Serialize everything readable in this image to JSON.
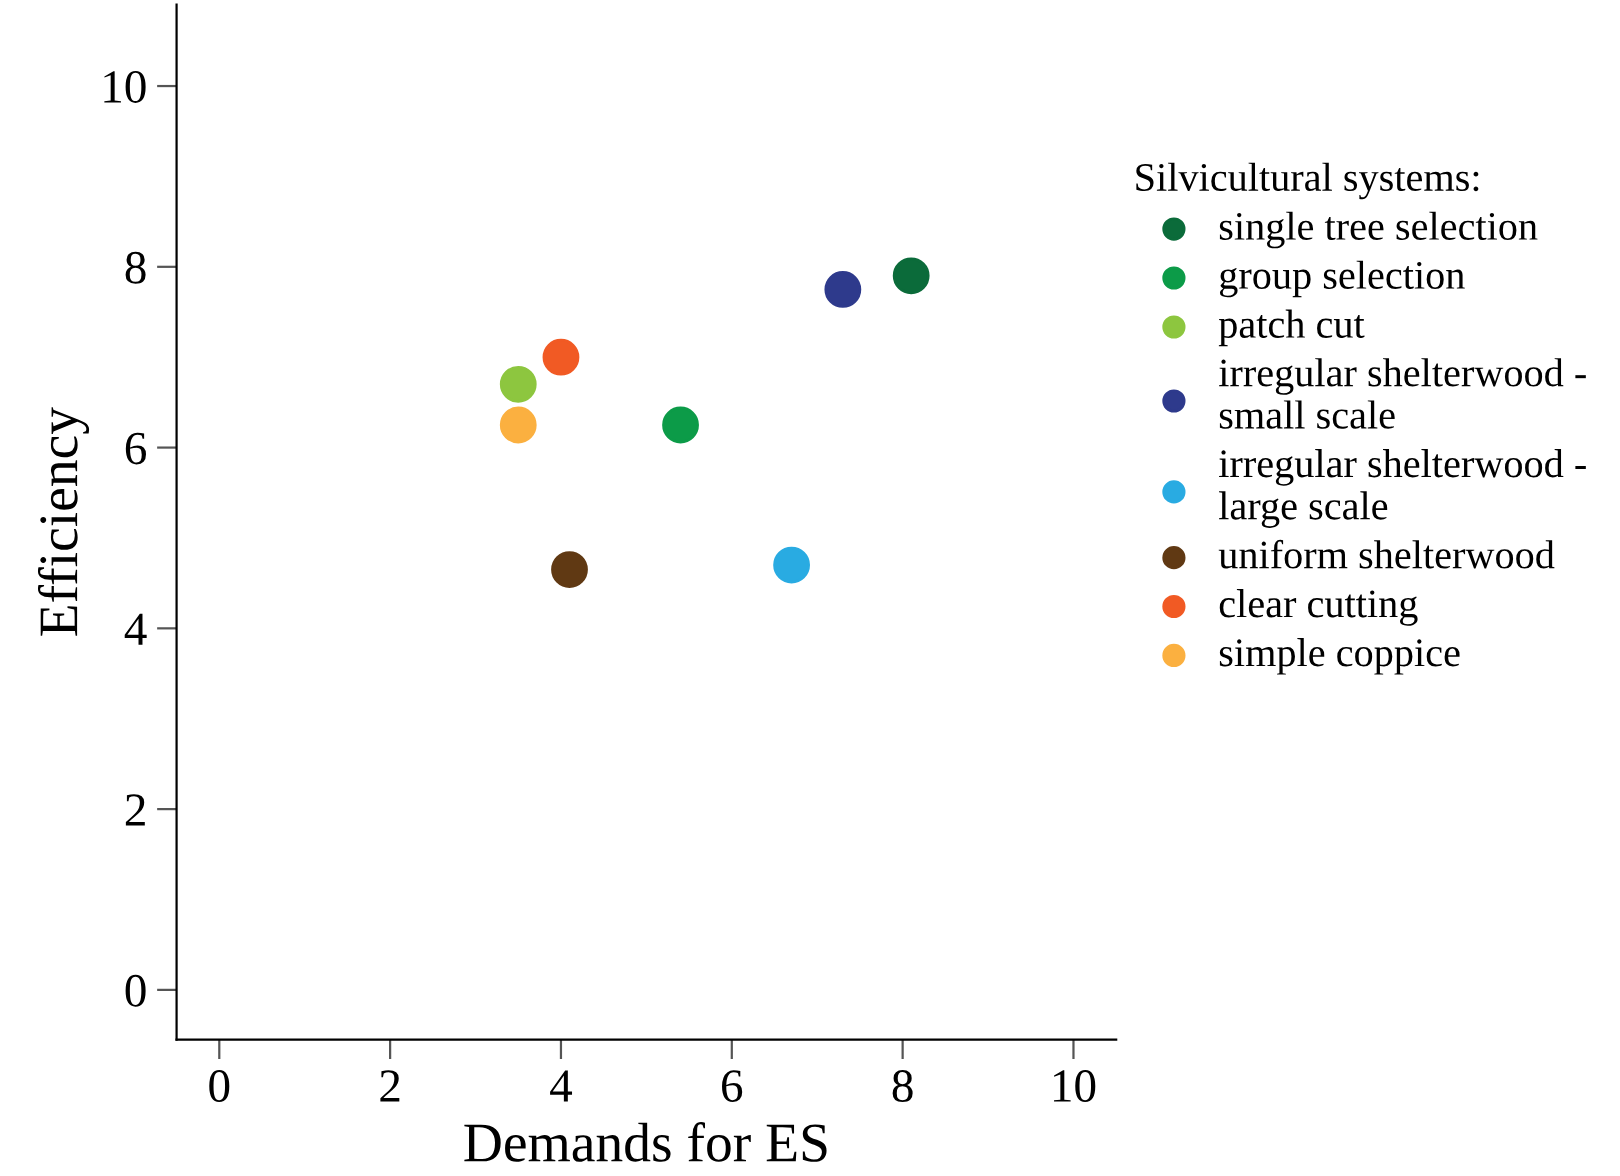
{
  "chart_data": {
    "type": "scatter",
    "xlabel": "Demands for ES",
    "ylabel": "Efficiency",
    "legend_title": "Silvicultural systems:",
    "legend": "right",
    "marker": "circle",
    "grid": false,
    "xlim": [
      -0.5,
      10.5
    ],
    "ylim": [
      -0.55,
      10.9
    ],
    "xticks": [
      0,
      2,
      4,
      6,
      8,
      10
    ],
    "yticks": [
      0,
      2,
      4,
      6,
      8,
      10
    ],
    "series": [
      {
        "name": "single tree selection",
        "color": "#0b6b3a",
        "x": [
          8.1
        ],
        "values": [
          7.9
        ]
      },
      {
        "name": "group selection",
        "color": "#0c9b48",
        "x": [
          5.4
        ],
        "values": [
          6.25
        ]
      },
      {
        "name": "patch cut",
        "color": "#8dc63f",
        "x": [
          3.5
        ],
        "values": [
          6.7
        ]
      },
      {
        "name": "irregular shelterwood -\nsmall scale",
        "color": "#2e3a8c",
        "x": [
          7.3
        ],
        "values": [
          7.75
        ]
      },
      {
        "name": "irregular shelterwood -\nlarge scale",
        "color": "#29abe2",
        "x": [
          6.7
        ],
        "values": [
          4.7
        ]
      },
      {
        "name": "uniform shelterwood",
        "color": "#603913",
        "x": [
          4.1
        ],
        "values": [
          4.65
        ]
      },
      {
        "name": "clear cutting",
        "color": "#f15a24",
        "x": [
          4.0
        ],
        "values": [
          7.0
        ]
      },
      {
        "name": "simple coppice",
        "color": "#fbb040",
        "x": [
          3.5
        ],
        "values": [
          6.25
        ]
      }
    ]
  }
}
